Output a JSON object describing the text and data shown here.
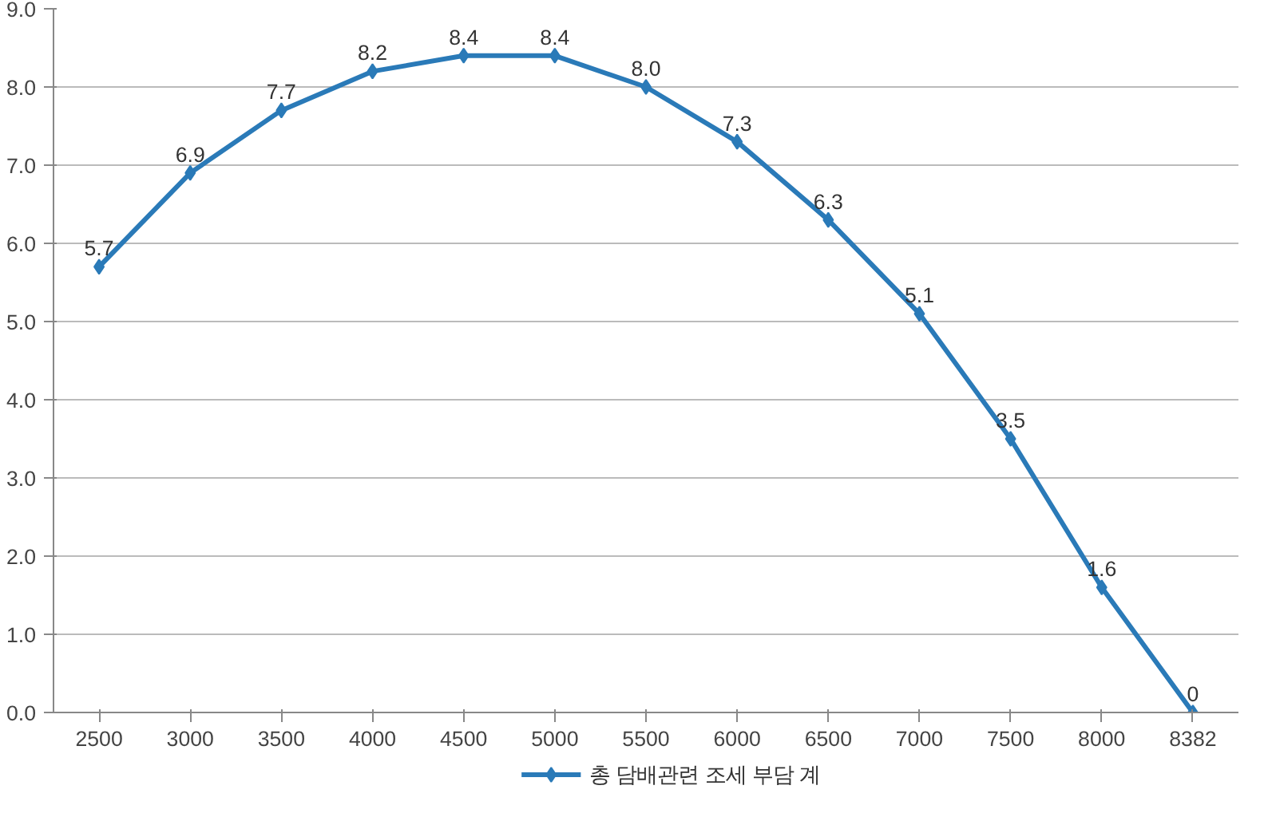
{
  "chart_data": {
    "type": "line",
    "categories": [
      "2500",
      "3000",
      "3500",
      "4000",
      "4500",
      "5000",
      "5500",
      "6000",
      "6500",
      "7000",
      "7500",
      "8000",
      "8382"
    ],
    "series": [
      {
        "name": "총 담배관련 조세 부담 계",
        "color": "#2a7ab8",
        "values": [
          5.7,
          6.9,
          7.7,
          8.2,
          8.4,
          8.4,
          8.0,
          7.3,
          6.3,
          5.1,
          3.5,
          1.6,
          0
        ],
        "value_labels": [
          "5.7",
          "6.9",
          "7.7",
          "8.2",
          "8.4",
          "8.4",
          "8.0",
          "7.3",
          "6.3",
          "5.1",
          "3.5",
          "1.6",
          "0"
        ]
      }
    ],
    "ylim": [
      0,
      9
    ],
    "yticks": [
      {
        "value": 0,
        "label": "0.0"
      },
      {
        "value": 1,
        "label": "1.0"
      },
      {
        "value": 2,
        "label": "2.0"
      },
      {
        "value": 3,
        "label": "3.0"
      },
      {
        "value": 4,
        "label": "4.0"
      },
      {
        "value": 5,
        "label": "5.0"
      },
      {
        "value": 6,
        "label": "6.0"
      },
      {
        "value": 7,
        "label": "7.0"
      },
      {
        "value": 8,
        "label": "8.0"
      },
      {
        "value": 9,
        "label": "9.0"
      }
    ],
    "grid": "y",
    "legend": "bottom",
    "marker": "diamond",
    "line_style": "solid"
  }
}
